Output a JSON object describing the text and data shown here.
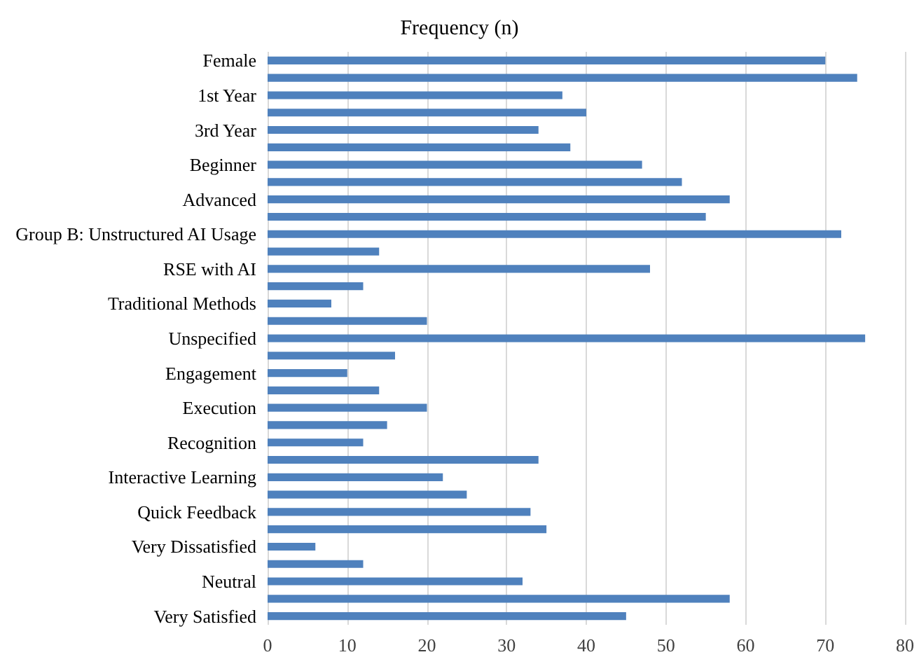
{
  "chart_data": {
    "type": "bar",
    "orientation": "horizontal",
    "title": "Frequency (n)",
    "categories": [
      "Female",
      null,
      "1st Year",
      null,
      "3rd Year",
      null,
      "Beginner",
      null,
      "Advanced",
      null,
      "Group B: Unstructured AI Usage",
      null,
      "RSE with AI",
      null,
      "Traditional Methods",
      null,
      "Unspecified",
      null,
      "Engagement",
      null,
      "Execution",
      null,
      "Recognition",
      null,
      "Interactive Learning",
      null,
      "Quick Feedback",
      null,
      "Very Dissatisfied",
      null,
      "Neutral",
      null,
      "Very Satisfied"
    ],
    "values": [
      70,
      74,
      37,
      40,
      34,
      38,
      47,
      52,
      58,
      55,
      72,
      14,
      48,
      12,
      8,
      20,
      75,
      16,
      10,
      14,
      20,
      15,
      12,
      34,
      22,
      25,
      33,
      35,
      6,
      12,
      32,
      58,
      45
    ],
    "color": "#4f81bd",
    "xlim": [
      0,
      80
    ],
    "xticks": [
      0,
      10,
      20,
      30,
      40,
      50,
      60,
      70,
      80
    ],
    "grid": "x"
  }
}
